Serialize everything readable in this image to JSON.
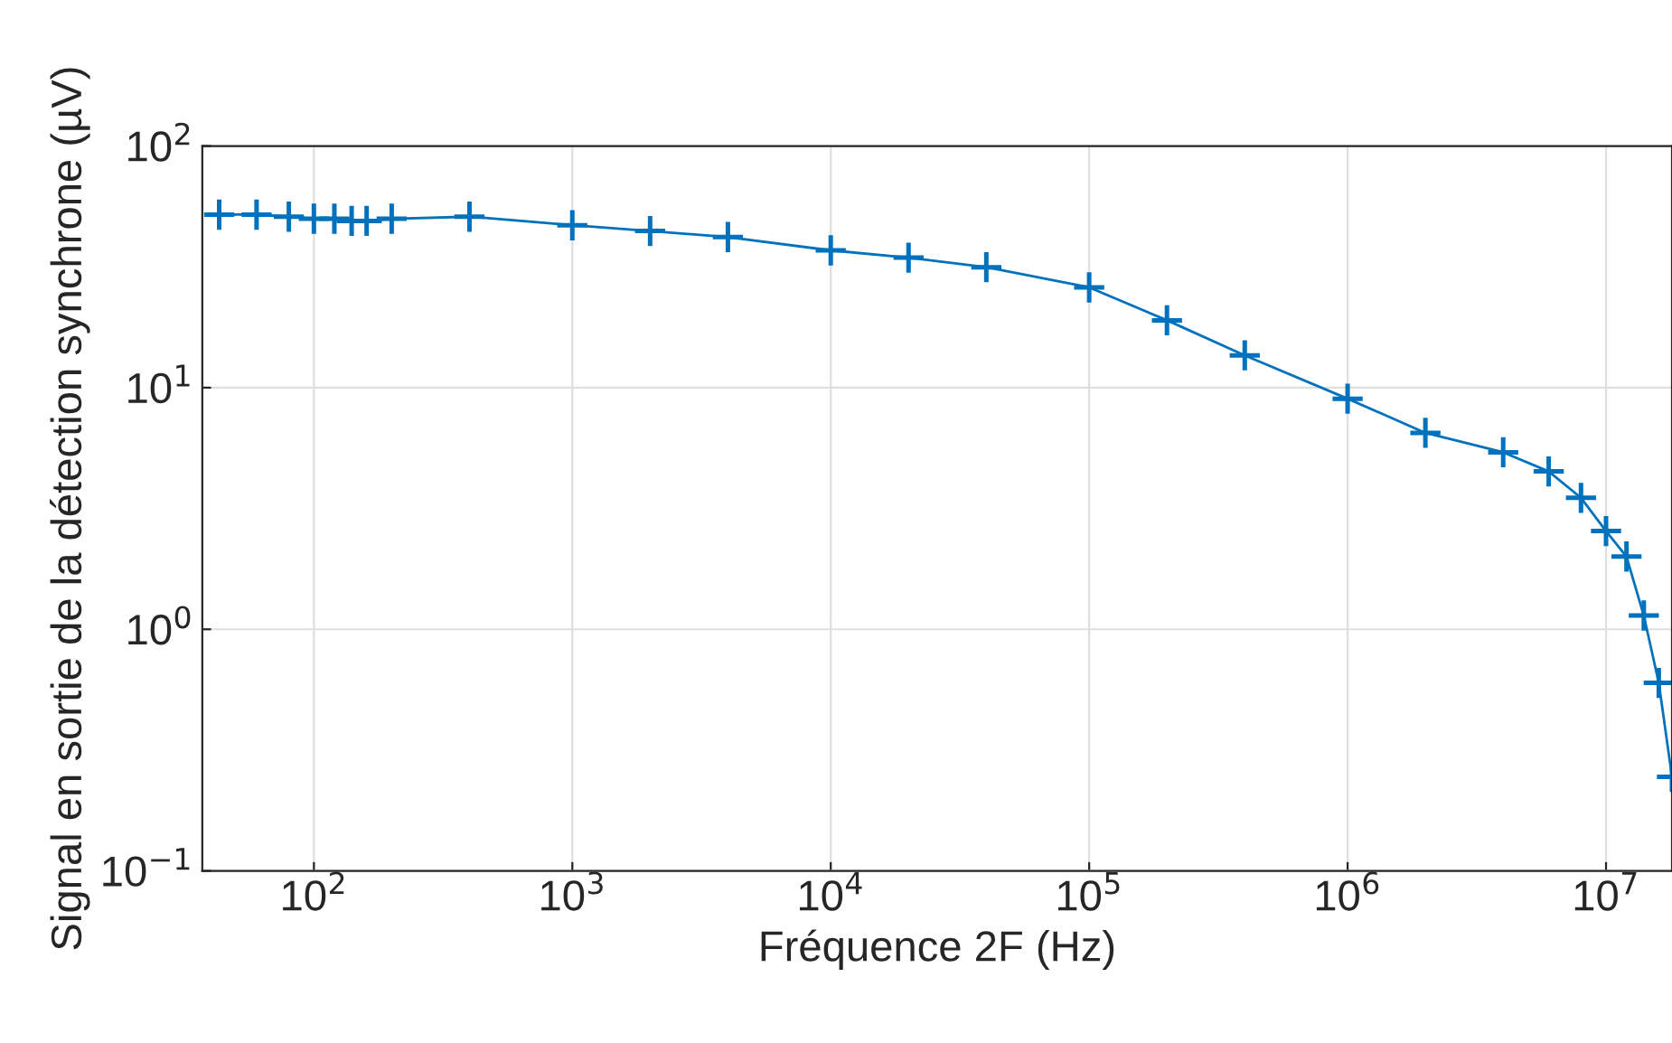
{
  "chart_data": {
    "type": "line",
    "xlabel": "Fréquence 2F (Hz)",
    "ylabel": "Signal en sortie de la détection synchrone (µV)",
    "x": [
      43,
      60,
      80,
      100,
      120,
      140,
      160,
      200,
      400,
      1000,
      2000,
      4000,
      10000,
      20000,
      40000,
      100000,
      200000,
      400000,
      1000000,
      2000000,
      4000000,
      6000000,
      8000000,
      10000000,
      12000000,
      14000000,
      16000000,
      18000000
    ],
    "series": [
      {
        "color": "#0072bd",
        "values": [
          52,
          52,
          51,
          50,
          50,
          49,
          49,
          50,
          51,
          47,
          44.5,
          42,
          37,
          34.5,
          31.5,
          26,
          19,
          13.6,
          9,
          6.5,
          5.4,
          4.5,
          3.5,
          2.55,
          2.0,
          1.14,
          0.6,
          0.245
        ]
      }
    ],
    "log": "xy",
    "xlim": [
      37,
      18000000
    ],
    "ylim": [
      0.1,
      100
    ],
    "xticks": [
      {
        "value": 100,
        "label": "10$^{2}$"
      },
      {
        "value": 1000,
        "label": "10$^{3}$"
      },
      {
        "value": 10000,
        "label": "10$^{4}$"
      },
      {
        "value": 100000,
        "label": "10$^{5}$"
      },
      {
        "value": 1000000,
        "label": "10$^{6}$"
      },
      {
        "value": 10000000,
        "label": "10$^{7}$"
      }
    ],
    "yticks": [
      {
        "value": 0.1,
        "label": "10$^{−1}$"
      },
      {
        "value": 1,
        "label": "10$^{0}$"
      },
      {
        "value": 10,
        "label": "10$^{1}$"
      },
      {
        "value": 100,
        "label": "10$^{2}$"
      }
    ],
    "grid": true,
    "marker": "cross",
    "line_style": "solid"
  }
}
